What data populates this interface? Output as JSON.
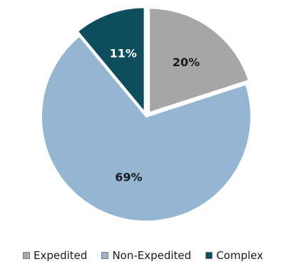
{
  "chart_data": {
    "type": "pie",
    "title": "",
    "categories": [
      "Expedited",
      "Non-Expedited",
      "Complex"
    ],
    "values": [
      20,
      69,
      11
    ],
    "value_labels": [
      "20%",
      "69%",
      "11%"
    ],
    "colors": [
      "#a6a6a6",
      "#94b6d2",
      "#0d4d5e"
    ],
    "label_colors": [
      "#1a1a1a",
      "#1a1a1a",
      "#ffffff"
    ],
    "exploded": [
      true,
      false,
      true
    ],
    "start": "12 o'clock, clockwise",
    "legend_position": "bottom"
  },
  "legend": {
    "items": [
      {
        "label": "Expedited",
        "color": "#a6a6a6"
      },
      {
        "label": "Non-Expedited",
        "color": "#94b6d2"
      },
      {
        "label": "Complex",
        "color": "#0d4d5e"
      }
    ]
  }
}
